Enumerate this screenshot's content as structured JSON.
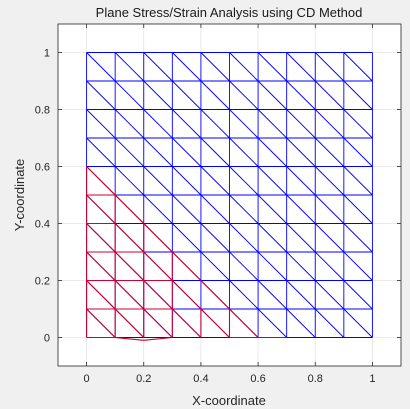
{
  "chart_data": {
    "type": "mesh",
    "title": "Plane Stress/Strain Analysis using CD Method",
    "xlabel": "X-coordinate",
    "ylabel": "Y-coordinate",
    "xlim": [
      -0.1,
      1.1
    ],
    "ylim": [
      -0.1,
      1.1
    ],
    "xticks": [
      0,
      0.2,
      0.4,
      0.6,
      0.8,
      1
    ],
    "xtick_labels": [
      "0",
      "0.2",
      "0.4",
      "0.6",
      "0.8",
      "1"
    ],
    "yticks": [
      0,
      0.2,
      0.4,
      0.6,
      0.8,
      1
    ],
    "ytick_labels": [
      "0",
      "0.2",
      "0.4",
      "0.6",
      "0.8",
      "1"
    ],
    "grid": true,
    "mesh": {
      "divisions_x": 10,
      "divisions_y": 10,
      "x_min": 0,
      "x_max": 1,
      "y_min": 0,
      "y_max": 1,
      "diagonal": "top-left to bottom-right"
    },
    "series": [
      {
        "color": "#0000ff",
        "description": "undeformed mesh",
        "segments": "all mesh edges"
      },
      {
        "color": "#cc0033",
        "description": "deformed mesh (lower-left region)",
        "segments": [
          [
            [
              0,
              0
            ],
            [
              0.1,
              0
            ]
          ],
          [
            [
              0.1,
              0
            ],
            [
              0.2,
              -0.01
            ]
          ],
          [
            [
              0.2,
              -0.01
            ],
            [
              0.3,
              0
            ]
          ],
          [
            [
              0.5,
              0
            ],
            [
              0.7,
              0
            ]
          ],
          [
            [
              0,
              0
            ],
            [
              0,
              0.6
            ]
          ],
          [
            [
              0,
              0.1
            ],
            [
              0.1,
              0
            ]
          ],
          [
            [
              0,
              0.2
            ],
            [
              0.2,
              0
            ]
          ],
          [
            [
              0,
              0.3
            ],
            [
              0.3,
              0
            ]
          ],
          [
            [
              0,
              0.4
            ],
            [
              0.4,
              0
            ]
          ],
          [
            [
              0,
              0.5
            ],
            [
              0.5,
              0
            ]
          ],
          [
            [
              0,
              0.6
            ],
            [
              0.6,
              0
            ]
          ],
          [
            [
              0,
              0.1
            ],
            [
              0.3,
              0.1
            ]
          ],
          [
            [
              0,
              0.2
            ],
            [
              0.3,
              0.2
            ]
          ],
          [
            [
              0,
              0.3
            ],
            [
              0.2,
              0.3
            ]
          ],
          [
            [
              0,
              0.4
            ],
            [
              0.1,
              0.4
            ]
          ],
          [
            [
              0,
              0.5
            ],
            [
              0.1,
              0.5
            ]
          ],
          [
            [
              0.1,
              0
            ],
            [
              0.1,
              0.5
            ]
          ],
          [
            [
              0.2,
              0
            ],
            [
              0.2,
              0.4
            ]
          ],
          [
            [
              0.3,
              0
            ],
            [
              0.3,
              0.3
            ]
          ],
          [
            [
              0.4,
              0
            ],
            [
              0.4,
              0.1
            ]
          ],
          [
            [
              0.5,
              0
            ],
            [
              0.5,
              0.1
            ]
          ]
        ]
      }
    ]
  }
}
